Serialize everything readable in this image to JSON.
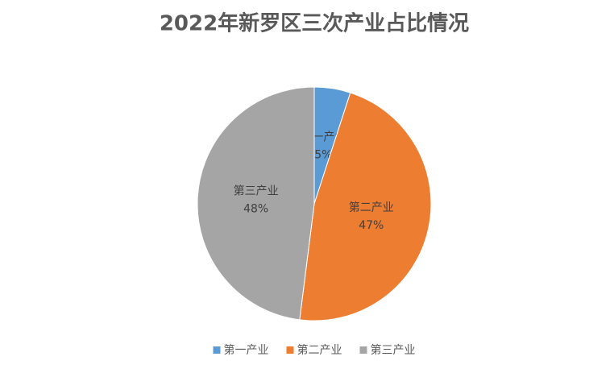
{
  "chart_data": {
    "type": "pie",
    "title": "2022年新罗区三次产业占比情况",
    "categories": [
      "第一产业",
      "第二产业",
      "第三产业"
    ],
    "values": [
      5,
      47,
      48
    ],
    "value_labels": [
      "5%",
      "47%",
      "48%"
    ],
    "colors": [
      "#5b9bd5",
      "#ed7d31",
      "#a5a5a5"
    ],
    "legend": "bottom"
  }
}
